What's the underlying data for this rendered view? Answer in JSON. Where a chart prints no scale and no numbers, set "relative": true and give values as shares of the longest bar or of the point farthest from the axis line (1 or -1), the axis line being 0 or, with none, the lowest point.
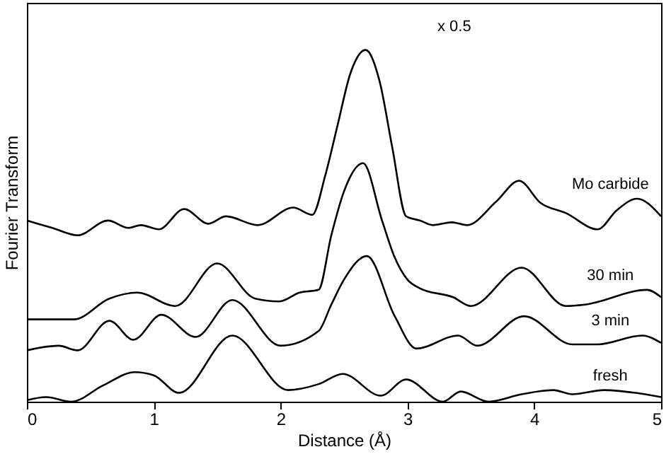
{
  "chart_data": {
    "type": "line",
    "relative": true,
    "xlabel": "Distance (Å)",
    "ylabel": "Fourier Transform",
    "xlim": [
      0,
      5
    ],
    "xticks": [
      0,
      1,
      2,
      3,
      4,
      5
    ],
    "tick_labels": "x",
    "grid": false,
    "marker": "none",
    "line_style": "solid",
    "annotations": [
      "x 0.5"
    ],
    "series": [
      {
        "name": "Mo carbide",
        "color": "#000000",
        "x": [
          0,
          0.2,
          0.4,
          0.64,
          0.8,
          0.9,
          1.04,
          1.24,
          1.43,
          1.57,
          1.82,
          2.1,
          2.25,
          2.35,
          2.45,
          2.55,
          2.67,
          2.78,
          2.88,
          2.99,
          3.1,
          3.2,
          3.35,
          3.47,
          3.7,
          3.88,
          4.05,
          4.25,
          4.5,
          4.65,
          4.81,
          5
        ],
        "values": [
          0.515,
          0.494,
          0.473,
          0.515,
          0.494,
          0.502,
          0.49,
          0.548,
          0.506,
          0.527,
          0.502,
          0.552,
          0.531,
          0.64,
          0.787,
          0.933,
          1.0,
          0.912,
          0.724,
          0.527,
          0.515,
          0.502,
          0.51,
          0.502,
          0.569,
          0.628,
          0.565,
          0.536,
          0.49,
          0.544,
          0.577,
          0.527
        ]
      },
      {
        "name": "30 min",
        "color": "#000000",
        "x": [
          0,
          0.37,
          0.65,
          0.87,
          1.17,
          1.5,
          1.8,
          1.99,
          2.15,
          2.3,
          2.4,
          2.5,
          2.65,
          2.8,
          2.9,
          3.0,
          3.1,
          3.36,
          3.5,
          3.9,
          4.25,
          4.4,
          4.89,
          5
        ],
        "values": [
          0.234,
          0.234,
          0.293,
          0.31,
          0.272,
          0.393,
          0.293,
          0.285,
          0.31,
          0.318,
          0.473,
          0.598,
          0.678,
          0.515,
          0.41,
          0.347,
          0.322,
          0.297,
          0.272,
          0.381,
          0.272,
          0.276,
          0.318,
          0.297
        ]
      },
      {
        "name": "3 min",
        "color": "#000000",
        "x": [
          0,
          0.25,
          0.4,
          0.65,
          0.84,
          1.06,
          1.33,
          1.62,
          2.0,
          2.3,
          2.4,
          2.5,
          2.68,
          2.9,
          3.07,
          3.4,
          3.55,
          3.92,
          4.3,
          4.5,
          4.85,
          5
        ],
        "values": [
          0.146,
          0.159,
          0.146,
          0.23,
          0.176,
          0.247,
          0.184,
          0.289,
          0.159,
          0.201,
          0.276,
          0.347,
          0.414,
          0.243,
          0.151,
          0.188,
          0.159,
          0.243,
          0.163,
          0.163,
          0.188,
          0.167
        ]
      },
      {
        "name": "fresh",
        "color": "#000000",
        "x": [
          0,
          0.15,
          0.35,
          0.6,
          0.85,
          1.0,
          1.2,
          1.62,
          2.06,
          2.3,
          2.49,
          2.79,
          2.99,
          3.28,
          3.42,
          3.64,
          3.9,
          4.15,
          4.3,
          4.55,
          4.8,
          5
        ],
        "values": [
          0.004,
          0.013,
          0,
          0.046,
          0.084,
          0.075,
          0.025,
          0.188,
          0.033,
          0.05,
          0.079,
          0.017,
          0.063,
          0,
          0.029,
          0,
          0.021,
          0.033,
          0.021,
          0.033,
          0.025,
          0.013
        ]
      }
    ]
  }
}
